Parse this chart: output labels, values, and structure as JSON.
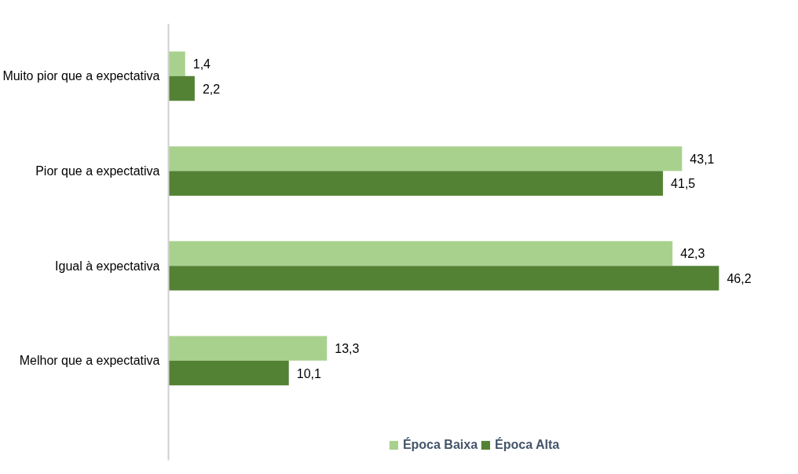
{
  "chart_data": {
    "type": "bar",
    "orientation": "horizontal",
    "categories": [
      "Muito pior que a expectativa",
      "Pior que a expectativa",
      "Igual à expectativa",
      "Melhor que a expectativa"
    ],
    "series": [
      {
        "name": "Época Baixa",
        "color": "#a9d18e",
        "values": [
          1.4,
          43.1,
          42.3,
          13.3
        ],
        "value_labels": [
          "1,4",
          "43,1",
          "42,3",
          "13,3"
        ]
      },
      {
        "name": "Época Alta",
        "color": "#548235",
        "values": [
          2.2,
          41.5,
          46.2,
          10.1
        ],
        "value_labels": [
          "2,2",
          "41,5",
          "46,2",
          "10,1"
        ]
      }
    ],
    "legend": "bottom"
  }
}
